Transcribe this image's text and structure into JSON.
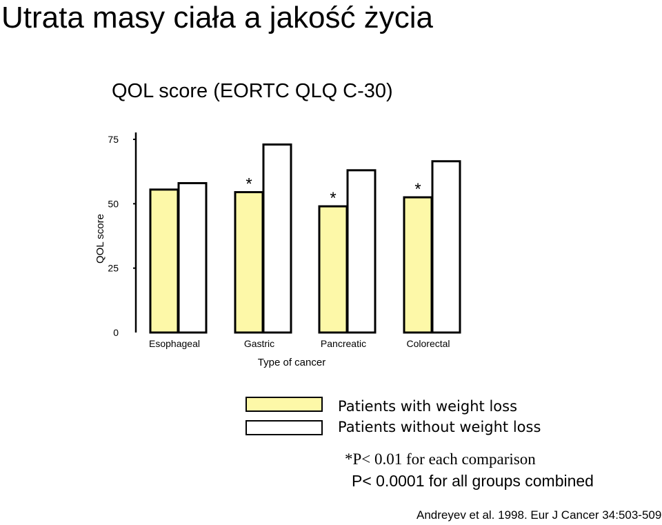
{
  "slide": {
    "title": "Utrata masy ciała a jakość życia"
  },
  "chart_data": {
    "type": "bar",
    "title": "QOL score (EORTC QLQ C-30)",
    "xlabel": "Type of cancer",
    "ylabel": "QOL score",
    "ylim": [
      0,
      75
    ],
    "yticks": [
      0,
      25,
      50,
      75
    ],
    "grid": false,
    "categories": [
      "Esophageal",
      "Gastric",
      "Pancreatic",
      "Colorectal"
    ],
    "series": [
      {
        "name": "Patients with weight loss",
        "color": "#fdf8a8",
        "values": [
          55.5,
          54.5,
          49,
          52.5
        ]
      },
      {
        "name": "Patients without weight loss",
        "color": "#ffffff",
        "values": [
          58,
          73,
          63,
          66.5
        ]
      }
    ],
    "significance_marker": "*",
    "significant_categories": [
      "Gastric",
      "Pancreatic",
      "Colorectal"
    ],
    "legend_position": "bottom"
  },
  "notes": {
    "per_comparison": "*P< 0.01 for each comparison",
    "combined": "P< 0.0001 for all groups combined"
  },
  "citation": "Andreyev et al. 1998. Eur J Cancer 34:503-509"
}
